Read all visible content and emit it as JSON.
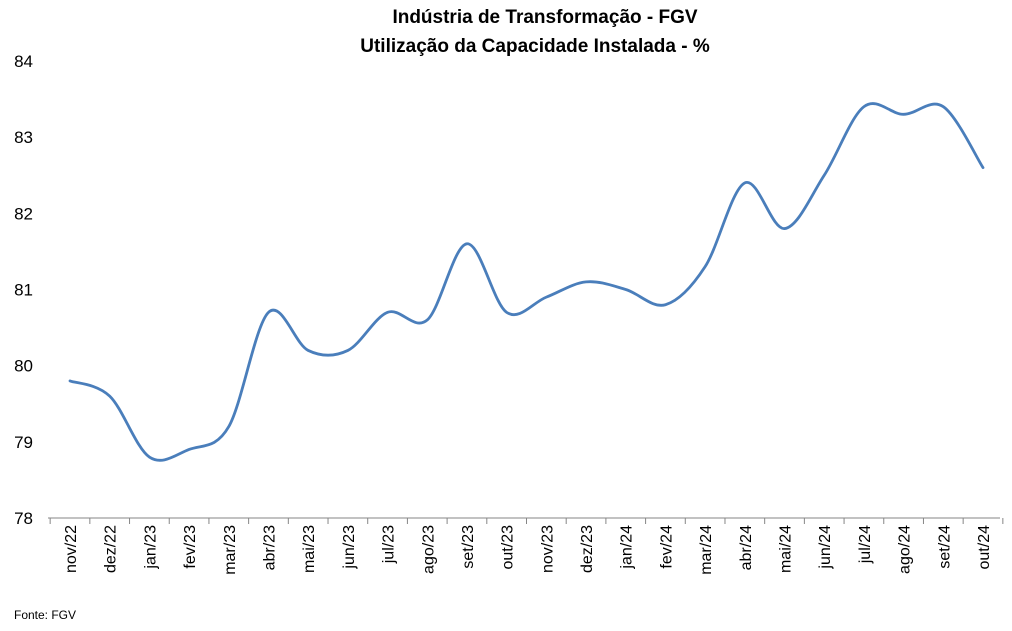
{
  "chart_data": {
    "type": "line",
    "title": "Indústria de Transformação - FGV",
    "subtitle": "Utilização da Capacidade Instalada - %",
    "xlabel": "",
    "ylabel": "",
    "ylim": [
      78,
      84
    ],
    "yticks": [
      "78",
      "79",
      "80",
      "81",
      "82",
      "83",
      "84"
    ],
    "grid": false,
    "legend": "none",
    "categories": [
      "nov/22",
      "dez/22",
      "jan/23",
      "fev/23",
      "mar/23",
      "abr/23",
      "mai/23",
      "jun/23",
      "jul/23",
      "ago/23",
      "set/23",
      "out/23",
      "nov/23",
      "dez/23",
      "jan/24",
      "fev/24",
      "mar/24",
      "abr/24",
      "mai/24",
      "jun/24",
      "jul/24",
      "ago/24",
      "set/24",
      "out/24"
    ],
    "series": [
      {
        "name": "Utilização da Capacidade Instalada",
        "color": "#4a7ebb",
        "values": [
          79.8,
          79.6,
          78.8,
          78.9,
          79.2,
          80.7,
          80.2,
          80.2,
          80.7,
          80.6,
          81.6,
          80.7,
          80.9,
          81.1,
          81.0,
          80.8,
          81.3,
          82.4,
          81.8,
          82.5,
          83.4,
          83.3,
          83.4,
          82.6
        ]
      }
    ],
    "source": "Fonte: FGV"
  }
}
